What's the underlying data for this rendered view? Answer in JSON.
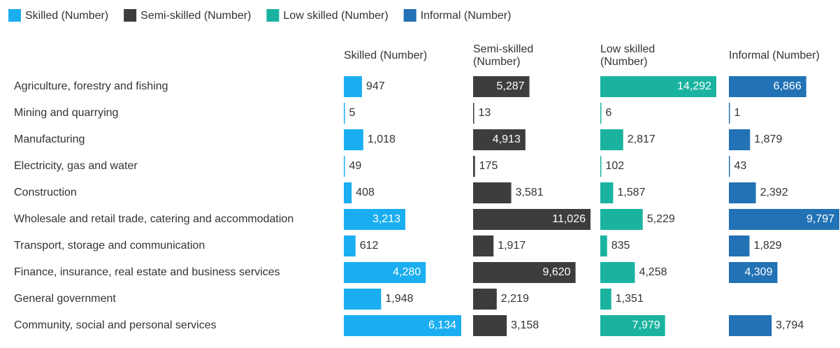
{
  "chart_data": {
    "type": "bar",
    "orientation": "horizontal",
    "layout": "small-multiples",
    "categories": [
      "Agriculture, forestry and fishing",
      "Mining and quarrying",
      "Manufacturing",
      "Electricity, gas and water",
      "Construction",
      "Wholesale and retail trade, catering and accommodation",
      "Transport, storage and communication",
      "Finance, insurance, real estate and business services",
      "General government",
      "Community, social and personal services"
    ],
    "series": [
      {
        "name": "Skilled (Number)",
        "color": "#1aaef0",
        "values": [
          947,
          5,
          1018,
          49,
          408,
          3213,
          612,
          4280,
          1948,
          6134
        ],
        "value_labels": [
          "947",
          "5",
          "1,018",
          "49",
          "408",
          "3,213",
          "612",
          "4,280",
          "1,948",
          "6,134"
        ]
      },
      {
        "name": "Semi-skilled (Number)",
        "color": "#3d3d3d",
        "values": [
          5287,
          13,
          4913,
          175,
          3581,
          11026,
          1917,
          9620,
          2219,
          3158
        ],
        "value_labels": [
          "5,287",
          "13",
          "4,913",
          "175",
          "3,581",
          "11,026",
          "1,917",
          "9,620",
          "2,219",
          "3,158"
        ]
      },
      {
        "name": "Low skilled (Number)",
        "color": "#1ab3a0",
        "values": [
          14292,
          6,
          2817,
          102,
          1587,
          5229,
          835,
          4258,
          1351,
          7979
        ],
        "value_labels": [
          "14,292",
          "6",
          "2,817",
          "102",
          "1,587",
          "5,229",
          "835",
          "4,258",
          "1,351",
          "7,979"
        ]
      },
      {
        "name": "Informal (Number)",
        "color": "#2272b5",
        "values": [
          6866,
          1,
          1879,
          43,
          2392,
          9797,
          1829,
          4309,
          null,
          3794
        ],
        "value_labels": [
          "6,866",
          "1",
          "1,879",
          "43",
          "2,392",
          "9,797",
          "1,829",
          "4,309",
          null,
          "3,794"
        ]
      }
    ],
    "legend": "top-left"
  }
}
